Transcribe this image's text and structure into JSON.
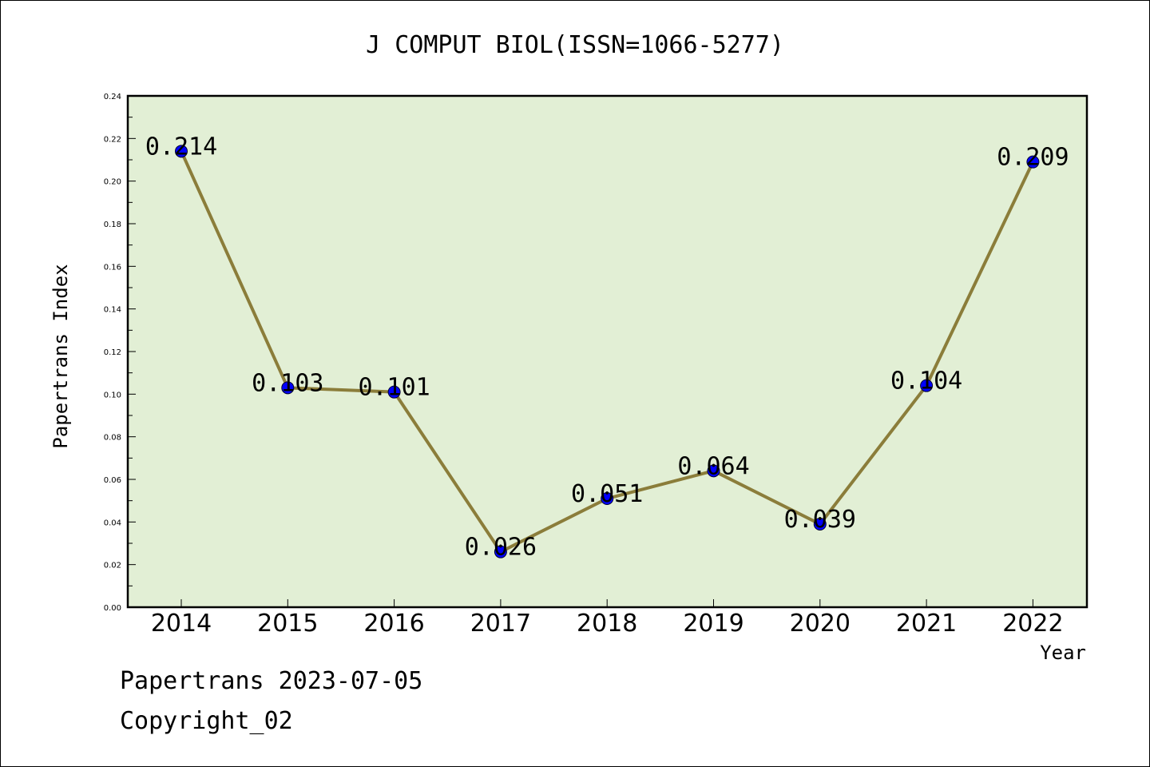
{
  "chart_data": {
    "type": "line",
    "title": "J COMPUT BIOL(ISSN=1066-5277)",
    "xlabel": "Year",
    "ylabel": "Papertrans Index",
    "categories": [
      "2014",
      "2015",
      "2016",
      "2017",
      "2018",
      "2019",
      "2020",
      "2021",
      "2022"
    ],
    "values": [
      0.214,
      0.103,
      0.101,
      0.026,
      0.051,
      0.064,
      0.039,
      0.104,
      0.209
    ],
    "data_labels": [
      "0.214",
      "0.103",
      "0.101",
      "0.026",
      "0.051",
      "0.064",
      "0.039",
      "0.104",
      "0.209"
    ],
    "ylim": [
      0,
      0.24
    ],
    "yticks": [
      "0.00",
      "0.02",
      "0.04",
      "0.06",
      "0.08",
      "0.10",
      "0.12",
      "0.14",
      "0.16",
      "0.18",
      "0.20",
      "0.22",
      "0.24"
    ],
    "grid": false,
    "colors": {
      "line": "#8b7d3a",
      "marker": "#0000ff",
      "plot_background": "#e2efd5"
    }
  },
  "footer": {
    "line1": "Papertrans 2023-07-05",
    "line2": "Copyright_02"
  }
}
